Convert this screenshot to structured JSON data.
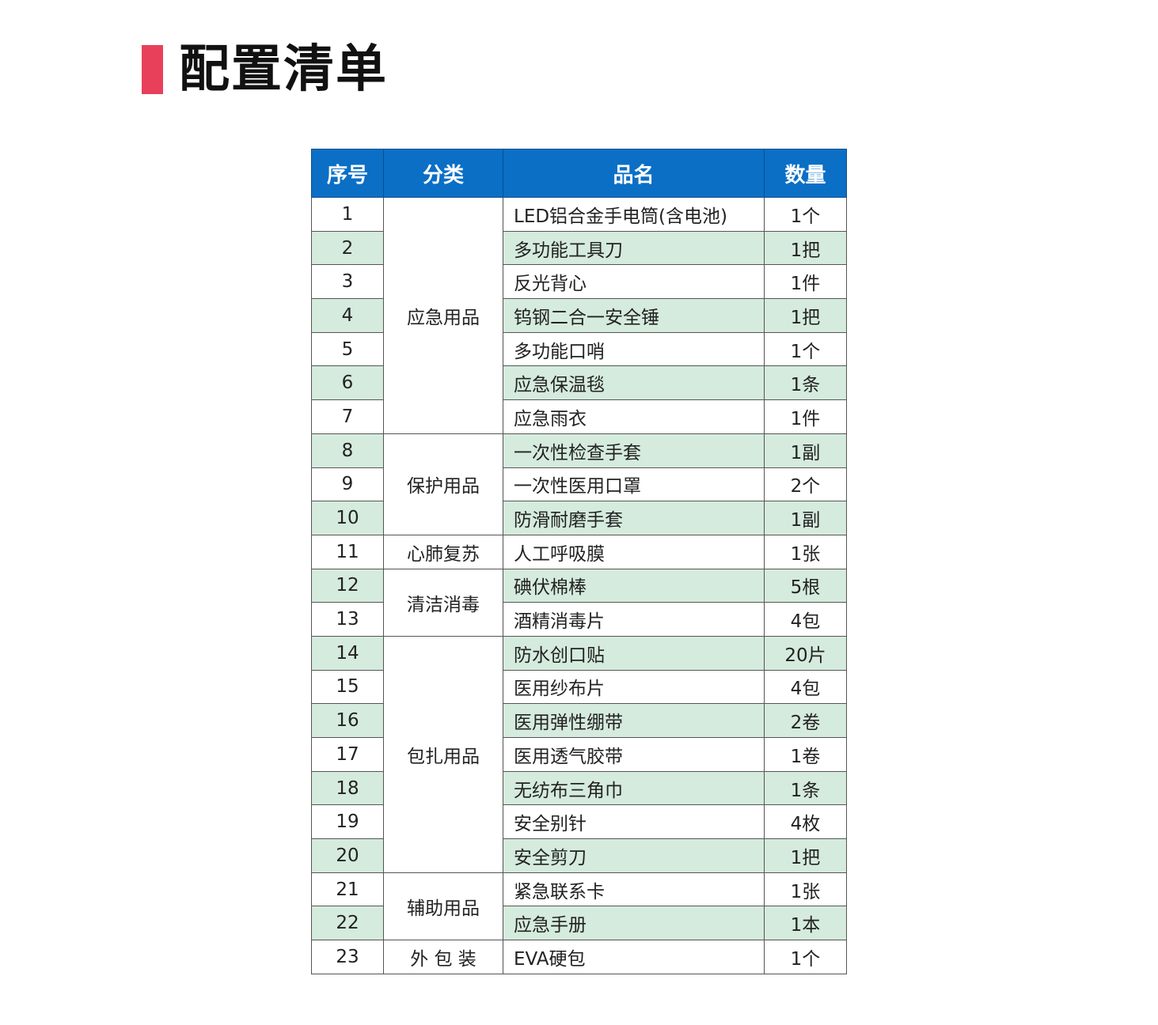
{
  "title": "配置清单",
  "colors": {
    "accent": "#e8405a",
    "header": "#0b6fc5",
    "alt_row": "#d5ebdd"
  },
  "table": {
    "headers": [
      "序号",
      "分类",
      "品名",
      "数量"
    ],
    "categories": [
      {
        "label": "应急用品",
        "span": 7
      },
      {
        "label": "保护用品",
        "span": 3
      },
      {
        "label": "心肺复苏",
        "span": 1
      },
      {
        "label": "清洁消毒",
        "span": 2
      },
      {
        "label": "包扎用品",
        "span": 7
      },
      {
        "label": "辅助用品",
        "span": 2
      },
      {
        "label": "外 包 装",
        "span": 1
      }
    ],
    "rows": [
      {
        "no": "1",
        "name": "LED铝合金手电筒(含电池)",
        "qty": "1个"
      },
      {
        "no": "2",
        "name": "多功能工具刀",
        "qty": "1把"
      },
      {
        "no": "3",
        "name": "反光背心",
        "qty": "1件"
      },
      {
        "no": "4",
        "name": "钨钢二合一安全锤",
        "qty": "1把"
      },
      {
        "no": "5",
        "name": "多功能口哨",
        "qty": "1个"
      },
      {
        "no": "6",
        "name": "应急保温毯",
        "qty": "1条"
      },
      {
        "no": "7",
        "name": "应急雨衣",
        "qty": "1件"
      },
      {
        "no": "8",
        "name": "一次性检查手套",
        "qty": "1副"
      },
      {
        "no": "9",
        "name": "一次性医用口罩",
        "qty": "2个"
      },
      {
        "no": "10",
        "name": "防滑耐磨手套",
        "qty": "1副"
      },
      {
        "no": "11",
        "name": "人工呼吸膜",
        "qty": "1张"
      },
      {
        "no": "12",
        "name": "碘伏棉棒",
        "qty": "5根"
      },
      {
        "no": "13",
        "name": "酒精消毒片",
        "qty": "4包"
      },
      {
        "no": "14",
        "name": "防水创口贴",
        "qty": "20片"
      },
      {
        "no": "15",
        "name": "医用纱布片",
        "qty": "4包"
      },
      {
        "no": "16",
        "name": "医用弹性绷带",
        "qty": "2卷"
      },
      {
        "no": "17",
        "name": "医用透气胶带",
        "qty": "1卷"
      },
      {
        "no": "18",
        "name": "无纺布三角巾",
        "qty": "1条"
      },
      {
        "no": "19",
        "name": "安全别针",
        "qty": "4枚"
      },
      {
        "no": "20",
        "name": "安全剪刀",
        "qty": "1把"
      },
      {
        "no": "21",
        "name": "紧急联系卡",
        "qty": "1张"
      },
      {
        "no": "22",
        "name": "应急手册",
        "qty": "1本"
      },
      {
        "no": "23",
        "name": "EVA硬包",
        "qty": "1个"
      }
    ]
  }
}
